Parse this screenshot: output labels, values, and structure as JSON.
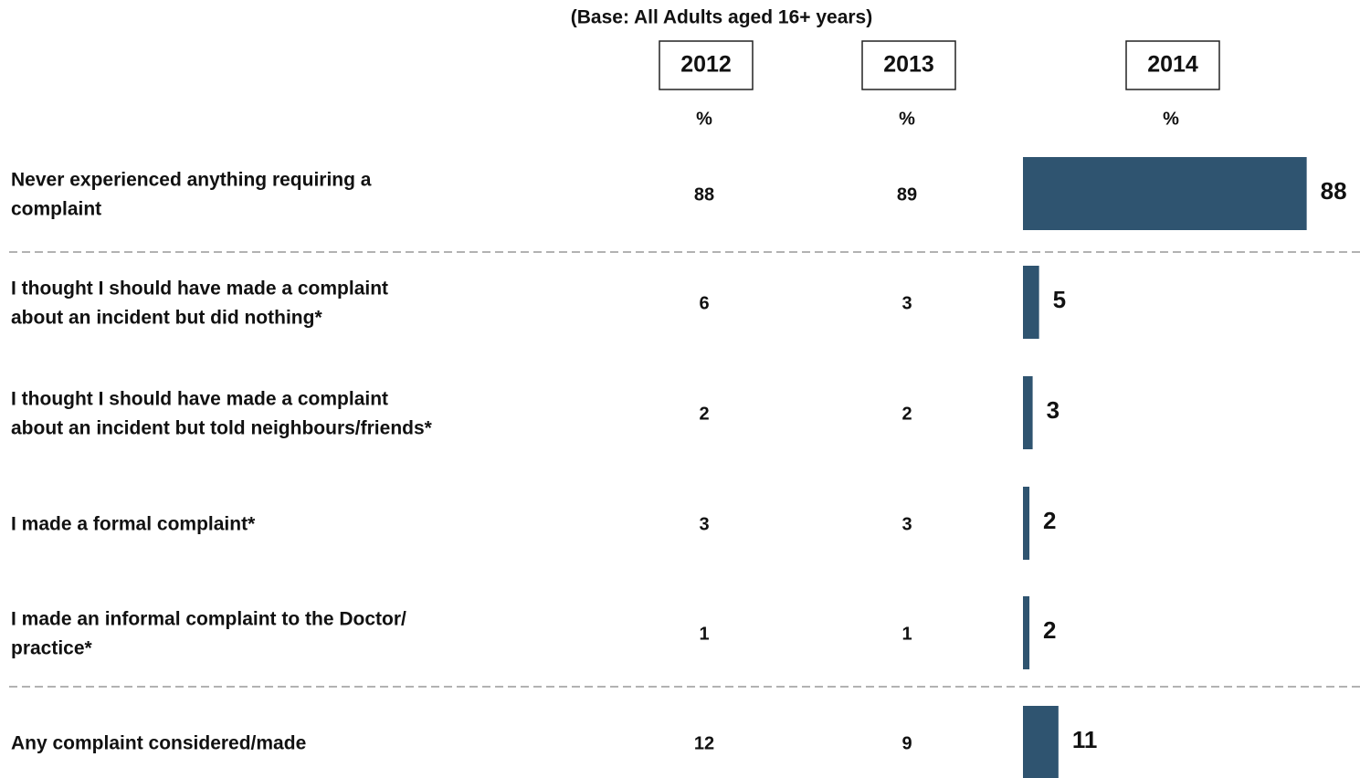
{
  "chart_data": {
    "type": "bar",
    "subtitle": "(Base: All Adults aged 16+ years)",
    "unit": "%",
    "categories": [
      [
        "Never experienced anything requiring a",
        "complaint"
      ],
      [
        "I thought I should have made a complaint",
        "about an incident but did nothing*"
      ],
      [
        "I thought I should have made a complaint",
        "about an incident but told neighbours/friends*"
      ],
      [
        "I made a formal complaint*"
      ],
      [
        "I made an informal complaint to the Doctor/",
        "practice*"
      ],
      [
        "Any complaint considered/made"
      ]
    ],
    "series": [
      {
        "name": "2012",
        "values": [
          88,
          6,
          2,
          3,
          1,
          12
        ]
      },
      {
        "name": "2013",
        "values": [
          89,
          3,
          2,
          3,
          1,
          9
        ]
      },
      {
        "name": "2014",
        "color": "#2f5470",
        "values": [
          88,
          5,
          3,
          2,
          2,
          11
        ]
      }
    ]
  }
}
